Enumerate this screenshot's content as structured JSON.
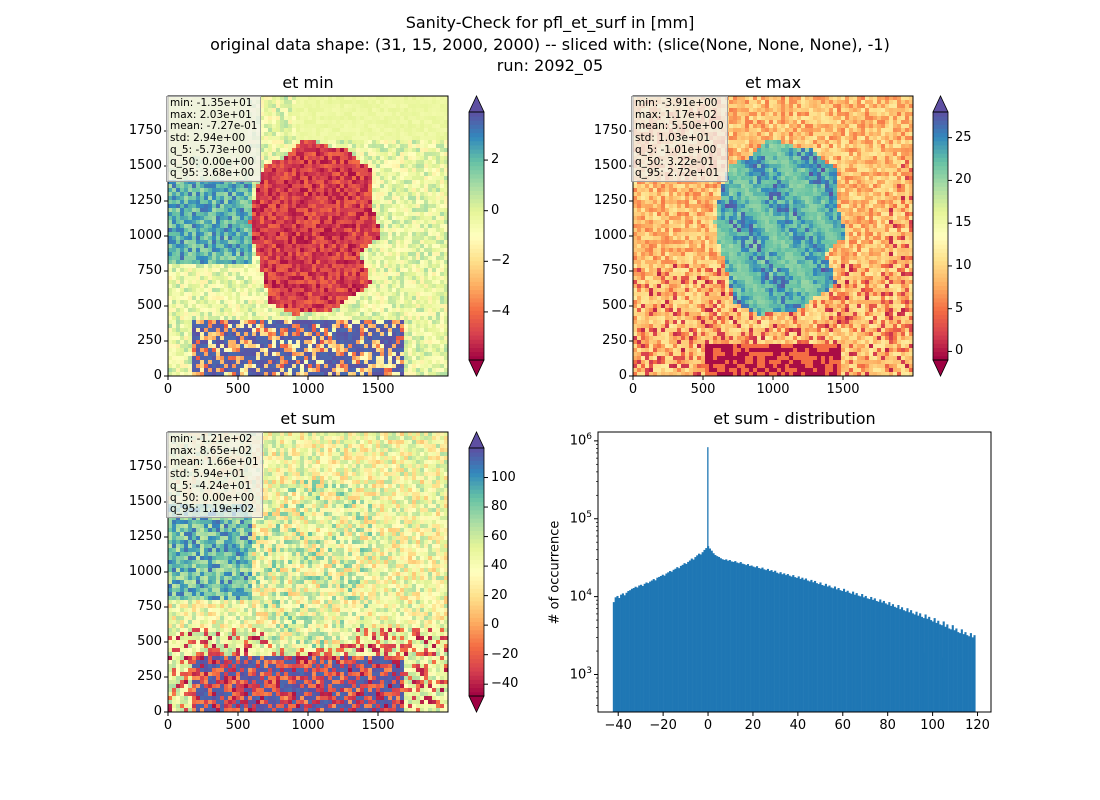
{
  "figure": {
    "title_line1": "Sanity-Check for pfl_et_surf in [mm]",
    "title_line2": "original data shape: (31, 15, 2000, 2000) -- sliced with: (slice(None, None, None), -1)",
    "title_line3": "run: 2092_05"
  },
  "colormap": "Spectral",
  "chart_data": [
    {
      "type": "heatmap",
      "title": "et min",
      "xticks": [
        "0",
        "500",
        "1000",
        "1500"
      ],
      "yticks": [
        "0",
        "250",
        "500",
        "750",
        "1000",
        "1250",
        "1500",
        "1750"
      ],
      "xlim": [
        0,
        2000
      ],
      "ylim": [
        0,
        2000
      ],
      "colorbar": {
        "range": [
          -5.9,
          3.9
        ],
        "ticks": [
          "2",
          "0",
          "−2",
          "−4"
        ],
        "tick_values": [
          2,
          0,
          -2,
          -4
        ],
        "extend": "both"
      },
      "stats": [
        "min: -1.35e+01",
        "max: 2.03e+01",
        "mean: -7.27e-01",
        "std: 2.94e+00",
        "q_5: -5.73e+00",
        "q_50: 0.00e+00",
        "q_95: 3.68e+00"
      ]
    },
    {
      "type": "heatmap",
      "title": "et max",
      "xticks": [
        "0",
        "500",
        "1000",
        "1500"
      ],
      "yticks": [
        "0",
        "250",
        "500",
        "750",
        "1000",
        "1250",
        "1500",
        "1750"
      ],
      "xlim": [
        0,
        2000
      ],
      "ylim": [
        0,
        2000
      ],
      "colorbar": {
        "range": [
          -1.0,
          28.0
        ],
        "ticks": [
          "25",
          "20",
          "15",
          "10",
          "5",
          "0"
        ],
        "tick_values": [
          25,
          20,
          15,
          10,
          5,
          0
        ],
        "extend": "both"
      },
      "stats": [
        "min: -3.91e+00",
        "max: 1.17e+02",
        "mean: 5.50e+00",
        "std: 1.03e+01",
        "q_5: -1.01e+00",
        "q_50: 3.22e-01",
        "q_95: 2.72e+01"
      ]
    },
    {
      "type": "heatmap",
      "title": "et sum",
      "xticks": [
        "0",
        "500",
        "1000",
        "1500"
      ],
      "yticks": [
        "0",
        "250",
        "500",
        "750",
        "1000",
        "1250",
        "1500",
        "1750"
      ],
      "xlim": [
        0,
        2000
      ],
      "ylim": [
        0,
        2000
      ],
      "colorbar": {
        "range": [
          -48.0,
          120.0
        ],
        "ticks": [
          "100",
          "80",
          "60",
          "40",
          "20",
          "0",
          "−20",
          "−40"
        ],
        "tick_values": [
          100,
          80,
          60,
          40,
          20,
          0,
          -20,
          -40
        ],
        "extend": "both"
      },
      "stats": [
        "min: -1.21e+02",
        "max: 8.65e+02",
        "mean: 1.66e+01",
        "std: 5.94e+01",
        "q_5: -4.24e+01",
        "q_50: 0.00e+00",
        "q_95: 1.19e+02"
      ]
    },
    {
      "type": "bar",
      "title": "et sum - distribution",
      "ylabel": "# of occurrence",
      "xlabel": "",
      "yscale": "log",
      "xlim": [
        -49,
        126
      ],
      "ylim": [
        330,
        1300000
      ],
      "xticks": [
        "−40",
        "−20",
        "0",
        "20",
        "40",
        "60",
        "80",
        "100",
        "120"
      ],
      "xtick_values": [
        -40,
        -20,
        0,
        20,
        40,
        60,
        80,
        100,
        120
      ],
      "yticks": [
        "10^3",
        "10^4",
        "10^5",
        "10^6"
      ],
      "ytick_values": [
        1000,
        10000,
        100000,
        1000000
      ],
      "color": "#1f77b4",
      "bin_range": [
        -42.4,
        119.0
      ],
      "bins": 200,
      "values": [
        8500,
        9800,
        10200,
        9600,
        10600,
        11000,
        10400,
        11200,
        11800,
        12100,
        12600,
        12900,
        13400,
        13100,
        13900,
        14200,
        13700,
        14600,
        15200,
        14900,
        15600,
        16100,
        16800,
        16200,
        17500,
        17900,
        18400,
        19100,
        18600,
        19800,
        20500,
        21300,
        20900,
        22100,
        22800,
        23900,
        23200,
        24800,
        25600,
        26900,
        26300,
        27900,
        29100,
        30800,
        29900,
        32200,
        33900,
        35600,
        34800,
        37200,
        39800,
        42000,
        44500,
        41500,
        38900,
        36100,
        34200,
        33100,
        32300,
        31100,
        30200,
        29600,
        30100,
        28900,
        29500,
        28300,
        27900,
        28600,
        27400,
        26900,
        27800,
        26500,
        26100,
        25400,
        26200,
        24800,
        25100,
        24300,
        23800,
        24600,
        23300,
        22900,
        23600,
        22400,
        21900,
        22700,
        21400,
        21900,
        20800,
        21500,
        20300,
        19800,
        20600,
        19400,
        19900,
        18900,
        19500,
        18600,
        18100,
        18900,
        17800,
        17400,
        18200,
        16900,
        17500,
        16500,
        17100,
        16100,
        15700,
        16400,
        15300,
        15900,
        14900,
        14500,
        15200,
        14100,
        13800,
        14600,
        13500,
        13900,
        13100,
        12800,
        13500,
        12400,
        12900,
        12100,
        11800,
        12600,
        11500,
        11900,
        11200,
        10900,
        11600,
        10600,
        11100,
        10300,
        10100,
        10800,
        9800,
        10200,
        9500,
        9300,
        9900,
        9100,
        9500,
        8800,
        8600,
        9200,
        8400,
        8800,
        8200,
        7900,
        8500,
        7600,
        8000,
        7400,
        7200,
        7800,
        6900,
        7300,
        6700,
        6500,
        7100,
        6300,
        6700,
        6100,
        5900,
        6400,
        5700,
        6100,
        5500,
        5300,
        5900,
        5200,
        5500,
        5000,
        4800,
        5300,
        4600,
        4900,
        4400,
        4300,
        4800,
        4100,
        4400,
        3900,
        3800,
        4300,
        3700,
        3900,
        3500,
        3400,
        3800,
        3300,
        3500,
        3200,
        3100,
        3400,
        3000,
        3200
      ],
      "spikes": [
        {
          "x": -0.15,
          "value": 830000
        },
        {
          "x": 93.5,
          "value": 480
        },
        {
          "x": 96.3,
          "value": 1900
        },
        {
          "x": 101.8,
          "value": 2100
        },
        {
          "x": 104.5,
          "value": 1650
        },
        {
          "x": 112.6,
          "value": 1600
        },
        {
          "x": 116.9,
          "value": 520
        },
        {
          "x": 118.6,
          "value": 1500
        }
      ]
    }
  ]
}
